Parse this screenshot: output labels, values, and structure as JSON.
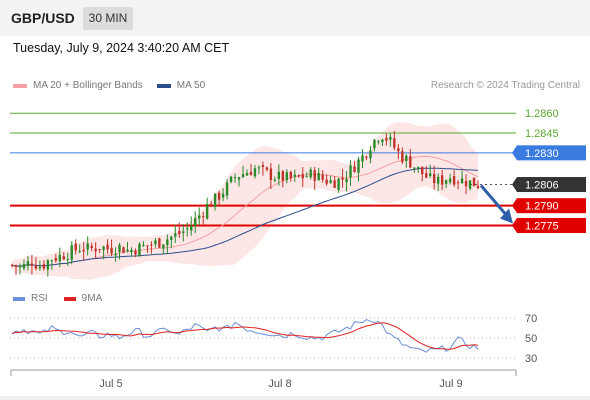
{
  "header": {
    "pair": "GBP/USD",
    "timeframe": "30 MIN"
  },
  "datetime": "Tuesday, July 9, 2024 3:40:20 AM CET",
  "legend": {
    "ma20_label": "MA 20 + Bollinger Bands",
    "ma50_label": "MA 50",
    "credit": "Research © 2024 Trading Central"
  },
  "rsi_legend": {
    "rsi_label": "RSI",
    "ma_label": "9MA"
  },
  "colors": {
    "ma20": "#f4a0a0",
    "ma50": "#2b4f8c",
    "bollinger": "#fde3e3",
    "bull": "#2a8a2a",
    "bear": "#c0332a",
    "resistance": "#5aa832",
    "pivot": "#3a7be0",
    "support": "#e00000",
    "current": "#333333",
    "arrow": "#2f5fa8",
    "rsi": "#6b8fd8",
    "rsi_ma": "#e02020"
  },
  "chart_data": [
    {
      "type": "candlestick",
      "title": "GBP/USD 30 MIN",
      "x_labels": [
        "Jul 5",
        "Jul 8",
        "Jul 9"
      ],
      "ylim": [
        1.2736,
        1.287
      ],
      "levels": [
        {
          "value": 1.286,
          "label": "1.2860",
          "kind": "resistance"
        },
        {
          "value": 1.2845,
          "label": "1.2845",
          "kind": "resistance"
        },
        {
          "value": 1.283,
          "label": "1.2830",
          "kind": "pivot"
        },
        {
          "value": 1.2806,
          "label": "1.2806",
          "kind": "current"
        },
        {
          "value": 1.279,
          "label": "1.2790",
          "kind": "support"
        },
        {
          "value": 1.2775,
          "label": "1.2775",
          "kind": "support"
        }
      ],
      "close_anchors": [
        1.2745,
        1.2743,
        1.2748,
        1.2744,
        1.275,
        1.2752,
        1.2755,
        1.2758,
        1.2757,
        1.2759,
        1.2757,
        1.2759,
        1.2756,
        1.2758,
        1.276,
        1.2762,
        1.2765,
        1.2768,
        1.2772,
        1.278,
        1.2789,
        1.2795,
        1.2803,
        1.2812,
        1.2815,
        1.2818,
        1.2815,
        1.2812,
        1.2811,
        1.281,
        1.2812,
        1.2814,
        1.281,
        1.2808,
        1.281,
        1.2818,
        1.2826,
        1.2837,
        1.2845,
        1.2838,
        1.2828,
        1.2823,
        1.2816,
        1.281,
        1.2808,
        1.2812,
        1.281,
        1.2808,
        1.2806
      ],
      "forecast": {
        "from": 1.2806,
        "to": 1.2778,
        "direction": "down"
      }
    },
    {
      "type": "line",
      "title": "RSI",
      "series": [
        {
          "name": "RSI"
        },
        {
          "name": "9MA"
        }
      ],
      "ylim": [
        20,
        80
      ],
      "ticks": [
        70,
        50,
        30
      ],
      "rsi_anchors": [
        56,
        59,
        57,
        53,
        60,
        56,
        58,
        50,
        55,
        52,
        54,
        50,
        55,
        57,
        52,
        55,
        60,
        52,
        58,
        63,
        55,
        61,
        58,
        66,
        60,
        57,
        56,
        54,
        52,
        55,
        52,
        50,
        51,
        54,
        58,
        62,
        67,
        70,
        64,
        52,
        45,
        40,
        36,
        37,
        38,
        41,
        48,
        43,
        40
      ]
    }
  ]
}
